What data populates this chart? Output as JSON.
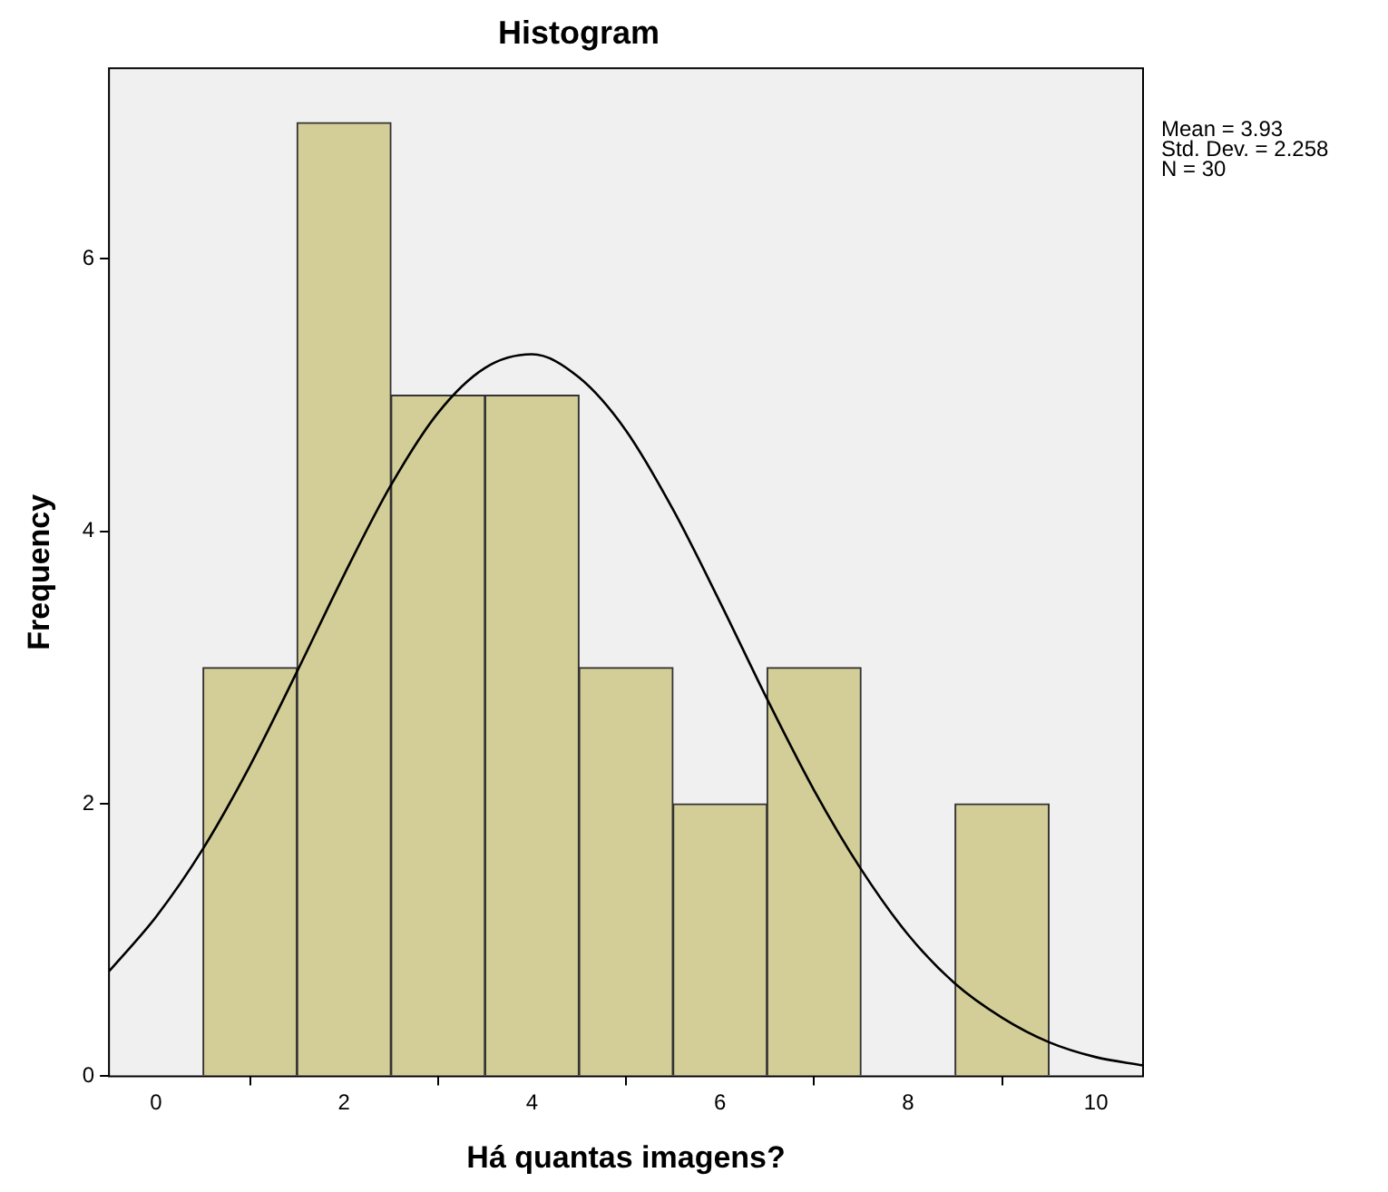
{
  "chart_data": {
    "type": "histogram",
    "title": "Histogram",
    "xlabel": "Há quantas imagens?",
    "ylabel": "Frequency",
    "bins": [
      0.5,
      1.5,
      2.5,
      3.5,
      4.5,
      5.5,
      6.5,
      7.5,
      8.5,
      9.5
    ],
    "values": [
      3,
      7,
      5,
      5,
      3,
      2,
      3,
      0,
      2
    ],
    "color": "#d3ce97",
    "series": [
      {
        "type": "line",
        "color": "#000000",
        "x": [
          -0.5,
          0,
          0.5,
          1,
          1.5,
          2,
          2.5,
          3,
          3.5,
          4,
          4.5,
          5,
          5.5,
          6,
          6.5,
          7,
          7.5,
          8,
          8.5,
          9,
          9.5,
          10,
          10.5
        ],
        "values": [
          0.77,
          1.17,
          1.67,
          2.28,
          2.97,
          3.68,
          4.34,
          4.87,
          5.2,
          5.3,
          5.13,
          4.74,
          4.16,
          3.48,
          2.77,
          2.1,
          1.52,
          1.04,
          0.68,
          0.43,
          0.25,
          0.14,
          0.08
        ]
      }
    ],
    "xlim": [
      -0.5,
      10.5
    ],
    "xticks": [
      0,
      2,
      4,
      6,
      8,
      10
    ],
    "ylim": [
      0,
      7.4
    ],
    "yticks": [
      0,
      2,
      4,
      6
    ],
    "grid": false,
    "legend": false,
    "marker": "none",
    "annotations": [
      "Mean = 3.93",
      "Std. Dev. = 2.258",
      "N = 30"
    ]
  }
}
